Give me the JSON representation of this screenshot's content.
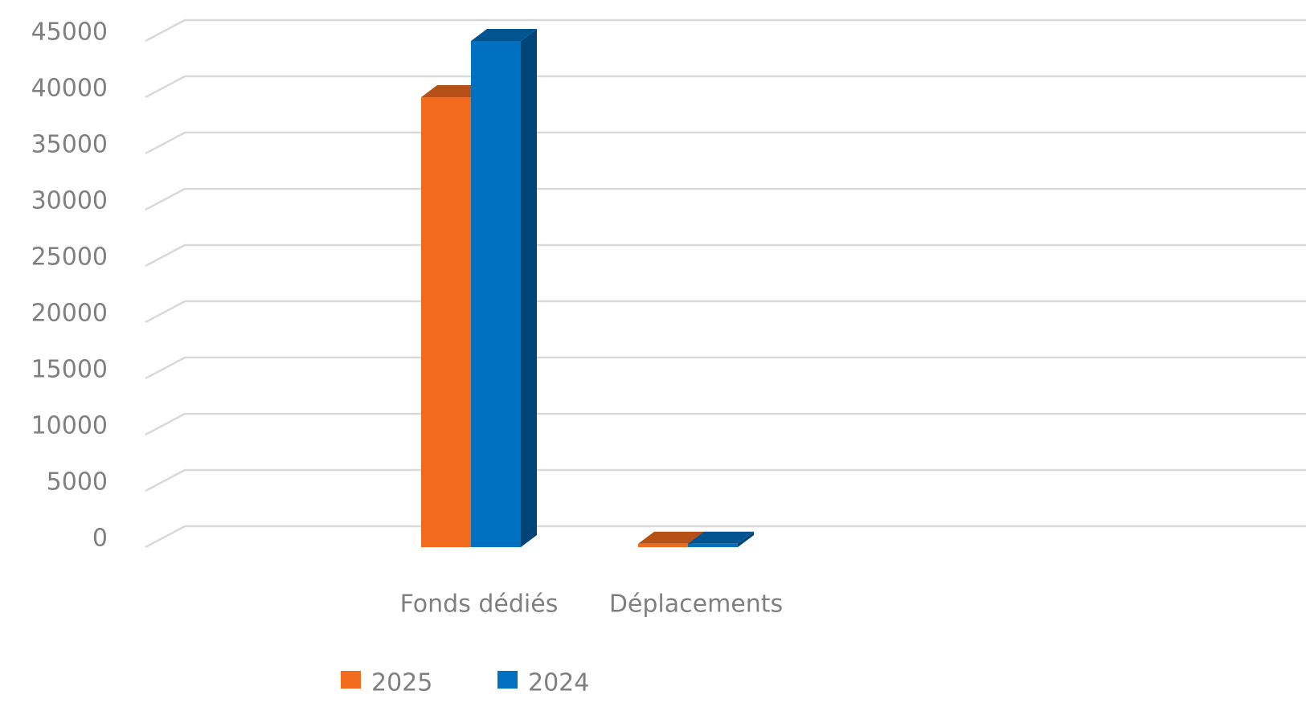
{
  "chart_data": {
    "type": "bar3d",
    "categories": [
      null,
      "Fonds dédiés",
      "Déplacements",
      null,
      null
    ],
    "series": [
      {
        "name": "2025",
        "color": "#f26b1d",
        "values": [
          null,
          40000,
          300,
          null,
          null
        ]
      },
      {
        "name": "2024",
        "color": "#0070c0",
        "values": [
          null,
          45000,
          300,
          null,
          null
        ]
      }
    ],
    "ylim": [
      0,
      45000
    ],
    "yticks": [
      0,
      5000,
      10000,
      15000,
      20000,
      25000,
      30000,
      35000,
      40000,
      45000
    ],
    "grid": true,
    "legend": "bottom"
  }
}
